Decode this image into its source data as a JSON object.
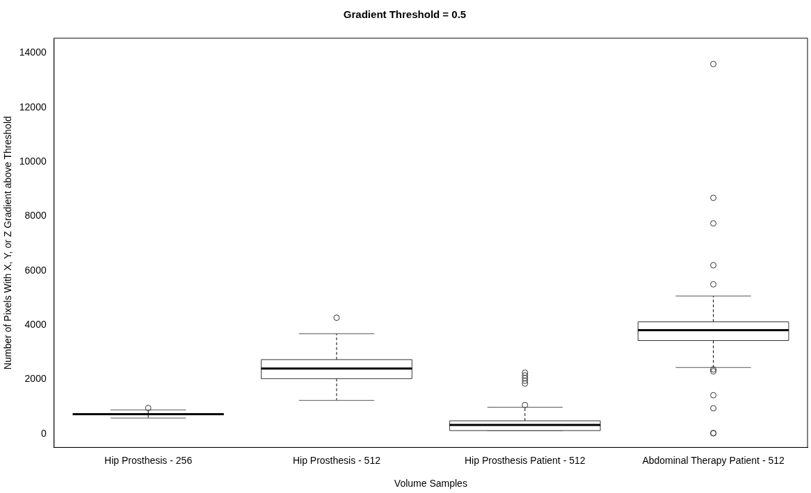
{
  "chart_data": {
    "type": "box",
    "title": "Gradient Threshold = 0.5",
    "xlabel": "Volume Samples",
    "ylabel": "Number of Pixels With X, Y, or Z Gradient above Threshold",
    "categories": [
      "Hip Prosthesis - 256",
      "Hip Prosthesis - 512",
      "Hip Prosthesis Patient - 512",
      "Abdominal Therapy Patient - 512"
    ],
    "boxes": [
      {
        "low": 580,
        "q1": 700,
        "median": 720,
        "q3": 740,
        "high": 880,
        "outliers": [
          950
        ]
      },
      {
        "low": 1230,
        "q1": 2030,
        "median": 2400,
        "q3": 2730,
        "high": 3680,
        "outliers": [
          4270
        ]
      },
      {
        "low": 120,
        "q1": 120,
        "median": 330,
        "q3": 480,
        "high": 980,
        "outliers": [
          1060,
          1850,
          1950,
          2050,
          2150,
          2250
        ]
      },
      {
        "low": 2440,
        "q1": 3430,
        "median": 3810,
        "q3": 4120,
        "high": 5070,
        "outliers": [
          13600,
          8680,
          7740,
          6200,
          5500,
          2370,
          2300,
          1420,
          940,
          30,
          20
        ]
      }
    ],
    "ylim": [
      -500,
      14550
    ],
    "yticks": [
      0,
      2000,
      4000,
      6000,
      8000,
      10000,
      12000,
      14000
    ],
    "grid": false,
    "legend": false
  }
}
